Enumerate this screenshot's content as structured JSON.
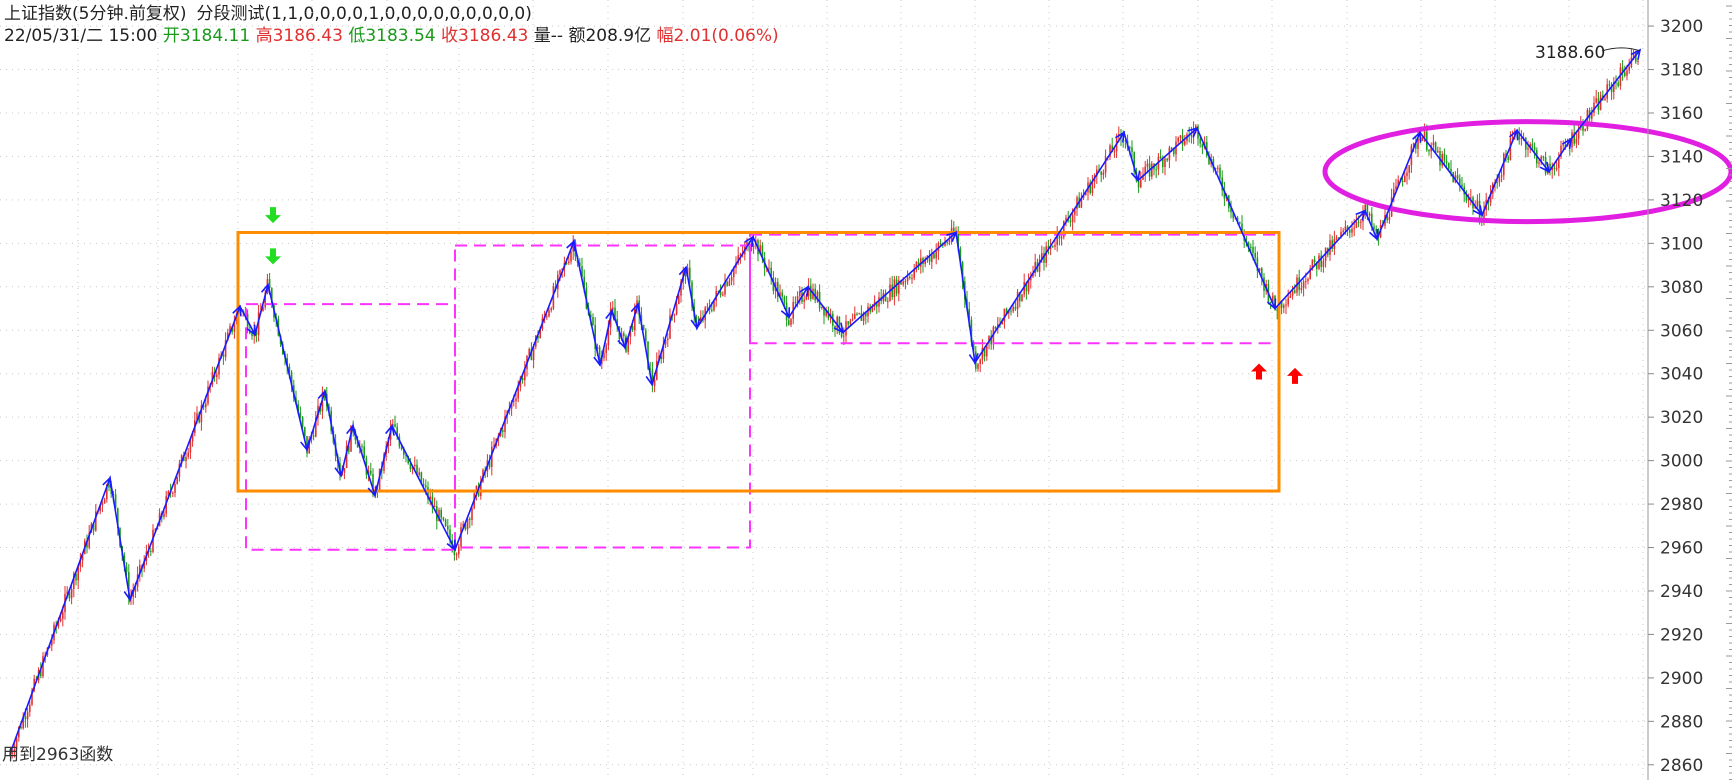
{
  "header": {
    "title": "上证指数(5分钟.前复权)",
    "indicator": "分段测试(1,1,0,0,0,0,1,0,0,0,0,0,0,0,0,0)",
    "date_time": "22/05/31/二 15:00",
    "open_label": "开",
    "open_value": "3184.11",
    "high_label": "高",
    "high_value": "3186.43",
    "low_label": "低",
    "low_value": "3183.54",
    "close_label": "收",
    "close_value": "3186.43",
    "volume_label": "量",
    "volume_value": "--",
    "amount_label": "额",
    "amount_value": "208.9亿",
    "change_label": "幅",
    "change_value": "2.01(0.06%)"
  },
  "bottom_label": "用到2963函数",
  "colors": {
    "up": "#e03030",
    "down": "#1a9a1a",
    "zigzag": "#1a1aff",
    "box_orange": "#ff8c00",
    "box_magenta": "#ff33ff",
    "ellipse": "#e11fe1",
    "arrow_green": "#22dd22",
    "arrow_red": "#ff0000"
  },
  "chart_data": {
    "type": "candlestick",
    "ylim": [
      2853,
      3212
    ],
    "y_ticks": [
      2860,
      2880,
      2900,
      2920,
      2940,
      2960,
      2980,
      3000,
      3020,
      3040,
      3060,
      3080,
      3100,
      3120,
      3140,
      3160,
      3180,
      3200
    ],
    "x_range": [
      0,
      1640
    ],
    "zigzag": [
      [
        10,
        2865
      ],
      [
        110,
        2992
      ],
      [
        130,
        2936
      ],
      [
        240,
        3071
      ],
      [
        255,
        3058
      ],
      [
        268,
        3081
      ],
      [
        307,
        3005
      ],
      [
        325,
        3032
      ],
      [
        341,
        2993
      ],
      [
        353,
        3016
      ],
      [
        375,
        2984
      ],
      [
        392,
        3016
      ],
      [
        455,
        2959
      ],
      [
        574,
        3101
      ],
      [
        600,
        3044
      ],
      [
        612,
        3069
      ],
      [
        625,
        3052
      ],
      [
        638,
        3072
      ],
      [
        652,
        3035
      ],
      [
        686,
        3089
      ],
      [
        697,
        3061
      ],
      [
        753,
        3103
      ],
      [
        789,
        3066
      ],
      [
        808,
        3080
      ],
      [
        843,
        3059
      ],
      [
        956,
        3105
      ],
      [
        975,
        3045
      ],
      [
        1124,
        3151
      ],
      [
        1138,
        3129
      ],
      [
        1197,
        3153
      ],
      [
        1275,
        3070
      ],
      [
        1365,
        3115
      ],
      [
        1377,
        3102
      ],
      [
        1420,
        3151
      ],
      [
        1482,
        3113
      ],
      [
        1517,
        3152
      ],
      [
        1549,
        3133
      ],
      [
        1571,
        3148
      ],
      [
        1640,
        3189
      ]
    ],
    "last_price_label": "3188.60",
    "last_price_value": 3188.6,
    "boxes_orange": [
      {
        "x1": 238,
        "x2": 1279,
        "y_top": 3105,
        "y_bottom": 2986
      }
    ],
    "boxes_dashed": [
      {
        "x1": 246,
        "x2": 455,
        "y_top": 3072,
        "y_bottom": 2959
      },
      {
        "x1": 455,
        "x2": 750,
        "y_top": 3099,
        "y_bottom": 2960
      },
      {
        "x1": 750,
        "x2": 1279,
        "y_top": 3104,
        "y_bottom": 3054
      }
    ],
    "ellipse": {
      "cx": 1528,
      "cy": 3133,
      "rx": 203,
      "ry_data": 23
    },
    "arrows_down": [
      {
        "x": 273,
        "y": 3113
      },
      {
        "x": 273,
        "y": 3094
      }
    ],
    "arrows_up": [
      {
        "x": 1259,
        "y": 3041
      },
      {
        "x": 1295,
        "y": 3039
      }
    ]
  }
}
